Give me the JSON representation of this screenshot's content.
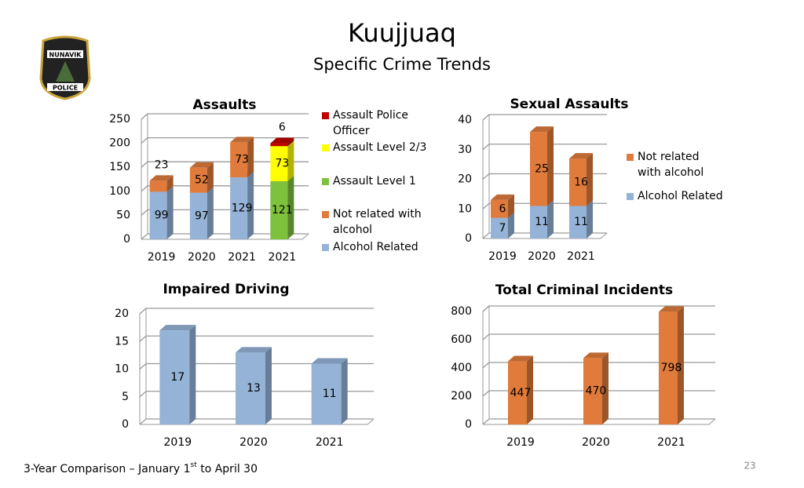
{
  "title": "Kuujjuaq",
  "subtitle": "Specific Crime Trends",
  "logo": {
    "top": "NUNAVIK",
    "bottom": "POLICE"
  },
  "footer": {
    "text": "3-Year Comparison – January 1",
    "superscript": "st",
    "rest": " to April 30"
  },
  "page_number": "23",
  "chart_data": [
    {
      "type": "bar",
      "stacked": true,
      "title": "Assaults",
      "categories": [
        "2019",
        "2020",
        "2021",
        "2021"
      ],
      "series": [
        {
          "name": "Alcohol Related",
          "color": "#95b3d7",
          "values": [
            99,
            97,
            129,
            null
          ]
        },
        {
          "name": "Not related with alcohol",
          "color": "#e07b3c",
          "values": [
            23,
            52,
            73,
            null
          ]
        },
        {
          "name": "Assault Level 1",
          "color": "#7ec13d",
          "values": [
            null,
            null,
            null,
            121
          ]
        },
        {
          "name": "Assault Level 2/3",
          "color": "#ffff00",
          "values": [
            null,
            null,
            null,
            73
          ]
        },
        {
          "name": "Assault Police Officer",
          "color": "#c00000",
          "values": [
            null,
            null,
            null,
            6
          ]
        }
      ],
      "ylim": [
        0,
        250
      ],
      "yticks": [
        0,
        50,
        100,
        150,
        200,
        250
      ],
      "grid": true,
      "legend": "right"
    },
    {
      "type": "bar",
      "stacked": true,
      "title": "Sexual Assaults",
      "categories": [
        "2019",
        "2020",
        "2021"
      ],
      "series": [
        {
          "name": "Alcohol Related",
          "color": "#95b3d7",
          "values": [
            7,
            11,
            11
          ]
        },
        {
          "name": "Not related with alcohol",
          "color": "#e07b3c",
          "values": [
            6,
            25,
            16
          ]
        }
      ],
      "ylim": [
        0,
        40
      ],
      "yticks": [
        0,
        10,
        20,
        30,
        40
      ],
      "grid": true,
      "legend": "right"
    },
    {
      "type": "bar",
      "title": "Impaired Driving",
      "categories": [
        "2019",
        "2020",
        "2021"
      ],
      "values": [
        17,
        13,
        11
      ],
      "color": "#95b3d7",
      "ylim": [
        0,
        20
      ],
      "yticks": [
        0,
        5,
        10,
        15,
        20
      ],
      "grid": true
    },
    {
      "type": "bar",
      "title": "Total Criminal Incidents",
      "categories": [
        "2019",
        "2020",
        "2021"
      ],
      "values": [
        447,
        470,
        798
      ],
      "color": "#e07b3c",
      "ylim": [
        0,
        800
      ],
      "yticks": [
        0,
        200,
        400,
        600,
        800
      ],
      "grid": true
    }
  ]
}
